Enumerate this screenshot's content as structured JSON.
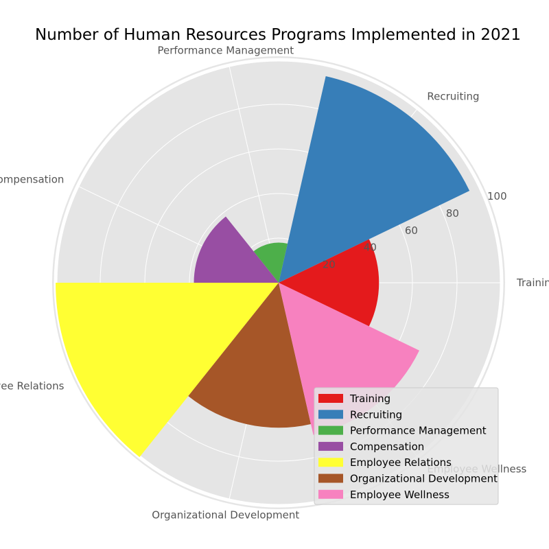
{
  "chart_data": {
    "type": "polar-bar",
    "title": "Number of Human Resources Programs Implemented in 2021",
    "categories": [
      "Training",
      "Recruiting",
      "Performance Management",
      "Compensation",
      "Employee Relations",
      "Organizational Development",
      "Employee Wellness"
    ],
    "values": [
      45,
      95,
      18,
      38,
      100,
      65,
      70
    ],
    "colors": [
      "#e41a1c",
      "#377eb8",
      "#4daf4a",
      "#984ea3",
      "#ffff33",
      "#a65628",
      "#f781bf"
    ],
    "r_ticks": [
      20,
      40,
      60,
      80,
      100
    ],
    "r_tick_labels": [
      "20",
      "40",
      "60",
      "80",
      "100"
    ],
    "rlim": [
      0,
      100
    ],
    "grid": true,
    "legend": {
      "position": "bottom-right",
      "entries": [
        "Training",
        "Recruiting",
        "Performance Management",
        "Compensation",
        "Employee Relations",
        "Organizational Development",
        "Employee Wellness"
      ]
    }
  }
}
